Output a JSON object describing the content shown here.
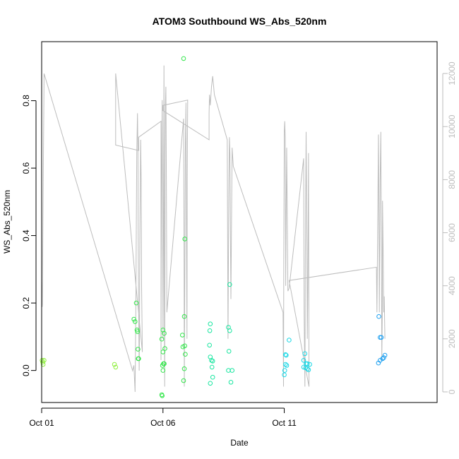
{
  "chart_data": {
    "type": "scatter",
    "title": "ATOM3 Southbound WS_Abs_520nm",
    "xlabel": "Date",
    "ylabel": "WS_Abs_520nm",
    "x_range_days": [
      0,
      16.3
    ],
    "x_ticks": [
      {
        "day": 0,
        "label": "Oct 01"
      },
      {
        "day": 5,
        "label": "Oct 06"
      },
      {
        "day": 10,
        "label": "Oct 11"
      }
    ],
    "y_range": [
      -0.095,
      0.975
    ],
    "y_ticks": [
      0.0,
      0.2,
      0.4,
      0.6,
      0.8
    ],
    "y_tick_labels": [
      "0.0",
      "0.2",
      "0.4",
      "0.6",
      "0.8"
    ],
    "y2_range": [
      -400,
      13200
    ],
    "y2_ticks": [
      0,
      2000,
      4000,
      6000,
      8000,
      10000,
      12000
    ],
    "y2_tick_labels": [
      "0",
      "2000",
      "4000",
      "6000",
      "8000",
      "10000",
      "12000"
    ],
    "colors": {
      "green_light": "#8ef03c",
      "green": "#32e64a",
      "teal": "#19e6a0",
      "cyan": "#19d8e6",
      "blue": "#1ea0f0",
      "altitude": "#bdbdbd"
    },
    "points": [
      {
        "x": 0.02,
        "y": 0.03,
        "c": "green_light"
      },
      {
        "x": 0.04,
        "y": 0.025,
        "c": "green_light"
      },
      {
        "x": 0.06,
        "y": 0.018,
        "c": "green_light"
      },
      {
        "x": 0.1,
        "y": 0.03,
        "c": "green_light"
      },
      {
        "x": 3.0,
        "y": 0.018,
        "c": "green_light"
      },
      {
        "x": 3.05,
        "y": 0.01,
        "c": "green_light"
      },
      {
        "x": 3.8,
        "y": 0.152,
        "c": "green"
      },
      {
        "x": 3.85,
        "y": 0.145,
        "c": "green"
      },
      {
        "x": 3.9,
        "y": 0.2,
        "c": "green"
      },
      {
        "x": 3.93,
        "y": 0.12,
        "c": "green"
      },
      {
        "x": 3.95,
        "y": 0.115,
        "c": "green"
      },
      {
        "x": 3.97,
        "y": 0.063,
        "c": "green"
      },
      {
        "x": 3.98,
        "y": 0.035,
        "c": "green"
      },
      {
        "x": 4.0,
        "y": 0.035,
        "c": "green"
      },
      {
        "x": 4.95,
        "y": 0.093,
        "c": "green"
      },
      {
        "x": 5.0,
        "y": 0.12,
        "c": "green"
      },
      {
        "x": 5.05,
        "y": 0.11,
        "c": "green"
      },
      {
        "x": 5.0,
        "y": 0.055,
        "c": "green"
      },
      {
        "x": 5.08,
        "y": 0.065,
        "c": "green"
      },
      {
        "x": 5.02,
        "y": 0.02,
        "c": "green"
      },
      {
        "x": 5.05,
        "y": 0.02,
        "c": "green"
      },
      {
        "x": 4.98,
        "y": 0.015,
        "c": "green"
      },
      {
        "x": 5.0,
        "y": 0.0,
        "c": "green"
      },
      {
        "x": 4.95,
        "y": -0.072,
        "c": "green"
      },
      {
        "x": 4.97,
        "y": -0.075,
        "c": "green"
      },
      {
        "x": 5.85,
        "y": 0.925,
        "c": "green"
      },
      {
        "x": 5.9,
        "y": 0.39,
        "c": "green"
      },
      {
        "x": 5.88,
        "y": 0.16,
        "c": "green"
      },
      {
        "x": 5.8,
        "y": 0.105,
        "c": "green"
      },
      {
        "x": 5.82,
        "y": 0.07,
        "c": "green"
      },
      {
        "x": 5.9,
        "y": 0.073,
        "c": "green"
      },
      {
        "x": 5.92,
        "y": 0.048,
        "c": "green"
      },
      {
        "x": 5.88,
        "y": 0.005,
        "c": "green"
      },
      {
        "x": 5.85,
        "y": -0.03,
        "c": "green"
      },
      {
        "x": 6.95,
        "y": 0.138,
        "c": "teal"
      },
      {
        "x": 6.93,
        "y": 0.118,
        "c": "teal"
      },
      {
        "x": 6.92,
        "y": 0.075,
        "c": "teal"
      },
      {
        "x": 6.95,
        "y": 0.04,
        "c": "teal"
      },
      {
        "x": 7.0,
        "y": 0.03,
        "c": "teal"
      },
      {
        "x": 7.05,
        "y": 0.028,
        "c": "teal"
      },
      {
        "x": 7.02,
        "y": 0.01,
        "c": "teal"
      },
      {
        "x": 7.05,
        "y": -0.02,
        "c": "teal"
      },
      {
        "x": 6.95,
        "y": -0.038,
        "c": "teal"
      },
      {
        "x": 7.75,
        "y": 0.255,
        "c": "teal"
      },
      {
        "x": 7.7,
        "y": 0.128,
        "c": "teal"
      },
      {
        "x": 7.75,
        "y": 0.118,
        "c": "teal"
      },
      {
        "x": 7.72,
        "y": 0.057,
        "c": "teal"
      },
      {
        "x": 7.7,
        "y": 0.0,
        "c": "teal"
      },
      {
        "x": 7.85,
        "y": 0.0,
        "c": "teal"
      },
      {
        "x": 7.8,
        "y": -0.035,
        "c": "teal"
      },
      {
        "x": 10.2,
        "y": 0.09,
        "c": "cyan"
      },
      {
        "x": 10.05,
        "y": 0.047,
        "c": "cyan"
      },
      {
        "x": 10.08,
        "y": 0.045,
        "c": "cyan"
      },
      {
        "x": 10.05,
        "y": 0.018,
        "c": "cyan"
      },
      {
        "x": 10.1,
        "y": 0.015,
        "c": "cyan"
      },
      {
        "x": 10.02,
        "y": 0.0,
        "c": "cyan"
      },
      {
        "x": 10.0,
        "y": -0.013,
        "c": "cyan"
      },
      {
        "x": 10.85,
        "y": 0.05,
        "c": "cyan"
      },
      {
        "x": 10.8,
        "y": 0.03,
        "c": "cyan"
      },
      {
        "x": 10.9,
        "y": 0.02,
        "c": "cyan"
      },
      {
        "x": 10.95,
        "y": 0.02,
        "c": "cyan"
      },
      {
        "x": 10.8,
        "y": 0.01,
        "c": "cyan"
      },
      {
        "x": 10.88,
        "y": 0.008,
        "c": "cyan"
      },
      {
        "x": 10.95,
        "y": 0.005,
        "c": "cyan"
      },
      {
        "x": 11.0,
        "y": 0.002,
        "c": "cyan"
      },
      {
        "x": 11.05,
        "y": 0.018,
        "c": "cyan"
      },
      {
        "x": 13.9,
        "y": 0.16,
        "c": "blue"
      },
      {
        "x": 13.95,
        "y": 0.098,
        "c": "blue"
      },
      {
        "x": 14.0,
        "y": 0.098,
        "c": "blue"
      },
      {
        "x": 14.05,
        "y": 0.035,
        "c": "blue"
      },
      {
        "x": 14.1,
        "y": 0.038,
        "c": "blue"
      },
      {
        "x": 14.15,
        "y": 0.045,
        "c": "blue"
      },
      {
        "x": 13.95,
        "y": 0.03,
        "c": "blue"
      },
      {
        "x": 13.88,
        "y": 0.022,
        "c": "blue"
      }
    ],
    "altitude_line": [
      [
        0.0,
        4200
      ],
      [
        0.02,
        3200
      ],
      [
        0.03,
        3300
      ],
      [
        0.05,
        6000
      ],
      [
        0.08,
        9500
      ],
      [
        0.1,
        12000
      ],
      [
        3.75,
        800
      ],
      [
        3.8,
        1000
      ],
      [
        3.85,
        0
      ],
      [
        3.88,
        3000
      ],
      [
        3.9,
        6000
      ],
      [
        3.92,
        9000
      ],
      [
        3.95,
        10500
      ],
      [
        3.97,
        9000
      ],
      [
        3.98,
        6000
      ],
      [
        4.0,
        3000
      ],
      [
        4.02,
        800
      ],
      [
        4.03,
        2000
      ],
      [
        4.05,
        6000
      ],
      [
        4.08,
        9500
      ],
      [
        4.1,
        8000
      ],
      [
        4.12,
        4000
      ],
      [
        4.15,
        1500
      ],
      [
        3.05,
        12000
      ],
      [
        3.05,
        9300
      ],
      [
        4.0,
        9100
      ],
      [
        4.0,
        9600
      ],
      [
        4.92,
        10200
      ],
      [
        4.92,
        1200
      ],
      [
        4.93,
        5000
      ],
      [
        4.95,
        9000
      ],
      [
        4.97,
        11000
      ],
      [
        4.98,
        8000
      ],
      [
        5.0,
        2000
      ],
      [
        5.02,
        6000
      ],
      [
        5.04,
        12300
      ],
      [
        5.05,
        9000
      ],
      [
        5.06,
        3000
      ],
      [
        5.07,
        200
      ],
      [
        5.08,
        4000
      ],
      [
        5.1,
        10800
      ],
      [
        5.12,
        11500
      ],
      [
        5.14,
        8000
      ],
      [
        5.16,
        3000
      ],
      [
        5.85,
        10300
      ],
      [
        5.87,
        5000
      ],
      [
        5.88,
        200
      ],
      [
        5.9,
        4000
      ],
      [
        5.92,
        9000
      ],
      [
        5.95,
        10900
      ],
      [
        5.97,
        6000
      ],
      [
        5.99,
        2000
      ],
      [
        6.0,
        8000
      ],
      [
        6.02,
        11000
      ],
      [
        5.0,
        10800
      ],
      [
        5.0,
        10600
      ],
      [
        6.9,
        9500
      ],
      [
        6.9,
        10500
      ],
      [
        6.92,
        11200
      ],
      [
        6.95,
        10800
      ],
      [
        7.0,
        11500
      ],
      [
        7.05,
        11900
      ],
      [
        7.1,
        11400
      ],
      [
        7.12,
        11200
      ],
      [
        7.65,
        9500
      ],
      [
        7.68,
        2000
      ],
      [
        7.7,
        5000
      ],
      [
        7.72,
        8000
      ],
      [
        7.74,
        9600
      ],
      [
        7.76,
        9000
      ],
      [
        7.78,
        6000
      ],
      [
        7.8,
        3500
      ],
      [
        7.85,
        9200
      ],
      [
        7.9,
        8500
      ],
      [
        9.95,
        3000
      ],
      [
        9.97,
        200
      ],
      [
        9.98,
        5000
      ],
      [
        10.0,
        9800
      ],
      [
        10.02,
        10200
      ],
      [
        10.04,
        9600
      ],
      [
        10.06,
        4000
      ],
      [
        10.08,
        7000
      ],
      [
        10.1,
        9200
      ],
      [
        10.15,
        3800
      ],
      [
        10.2,
        3900
      ],
      [
        10.8,
        8800
      ],
      [
        10.82,
        3000
      ],
      [
        10.85,
        200
      ],
      [
        10.87,
        5000
      ],
      [
        10.9,
        9800
      ],
      [
        10.93,
        6000
      ],
      [
        10.95,
        2000
      ],
      [
        10.97,
        4000
      ],
      [
        11.0,
        9000
      ],
      [
        11.02,
        200
      ],
      [
        10.2,
        4200
      ],
      [
        13.8,
        4700
      ],
      [
        13.82,
        3000
      ],
      [
        13.85,
        6000
      ],
      [
        13.88,
        9700
      ],
      [
        13.9,
        7000
      ],
      [
        13.92,
        3000
      ],
      [
        13.95,
        8000
      ],
      [
        13.98,
        9800
      ],
      [
        14.0,
        6000
      ],
      [
        14.02,
        1200
      ],
      [
        14.04,
        3000
      ],
      [
        14.05,
        7200
      ],
      [
        14.08,
        5000
      ],
      [
        14.1,
        3000
      ],
      [
        14.12,
        3600
      ],
      [
        14.15,
        2000
      ]
    ]
  }
}
